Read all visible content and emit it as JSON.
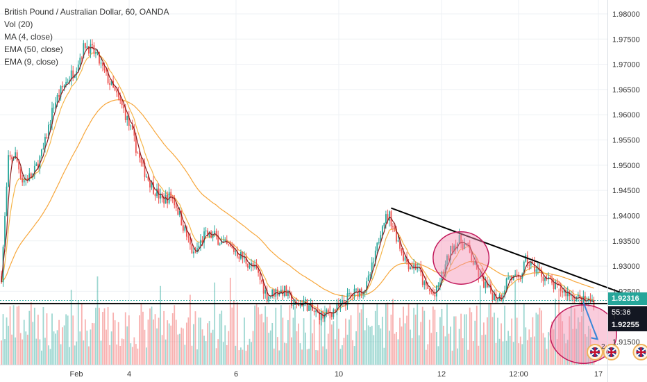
{
  "header": {
    "title": "British Pound / Australian Dollar, 60, OANDA",
    "indicators": [
      "Vol (20)",
      "MA (4, close)",
      "EMA (50, close)",
      "EMA (9, close)"
    ]
  },
  "price_labels": {
    "last": "1.92316",
    "countdown": "55:36",
    "level": "1.92255",
    "partial": "1"
  },
  "event_badge": "2",
  "colors": {
    "up": "#26a69a",
    "down": "#ef5350",
    "ma4": "#8a1c1c",
    "ema50": "#f7a63a",
    "ema9": "#f5b548",
    "trendline": "#000000",
    "ellipse_fill": "#f48fb1",
    "ellipse_stroke": "#c2185b",
    "arrow": "#3a87d8",
    "last_price_bg": "#26a69a",
    "level_bg": "#131722",
    "countdown_bg": "#131722"
  },
  "chart_data": {
    "type": "candlestick",
    "title": "British Pound / Australian Dollar, 60, OANDA",
    "x_ticks": [
      "Feb",
      "4",
      "6",
      "10",
      "12",
      "12:00",
      "17"
    ],
    "y_ticks": [
      1.98,
      1.975,
      1.97,
      1.965,
      1.96,
      1.955,
      1.95,
      1.945,
      1.94,
      1.935,
      1.93,
      1.925,
      1.915
    ],
    "ylim": [
      1.9105,
      1.9825
    ],
    "grid": true,
    "price_path": [
      [
        0,
        1.928
      ],
      [
        4,
        1.951
      ],
      [
        8,
        1.952
      ],
      [
        12,
        1.947
      ],
      [
        18,
        1.948
      ],
      [
        24,
        1.953
      ],
      [
        30,
        1.962
      ],
      [
        36,
        1.966
      ],
      [
        42,
        1.969
      ],
      [
        48,
        1.974
      ],
      [
        54,
        1.972
      ],
      [
        58,
        1.969
      ],
      [
        64,
        1.965
      ],
      [
        70,
        1.961
      ],
      [
        75,
        1.956
      ],
      [
        80,
        1.95
      ],
      [
        86,
        1.946
      ],
      [
        92,
        1.943
      ],
      [
        97,
        1.944
      ],
      [
        100,
        1.942
      ],
      [
        106,
        1.936
      ],
      [
        110,
        1.932
      ],
      [
        116,
        1.936
      ],
      [
        122,
        1.936
      ],
      [
        128,
        1.934
      ],
      [
        134,
        1.933
      ],
      [
        140,
        1.931
      ],
      [
        146,
        1.929
      ],
      [
        152,
        1.924
      ],
      [
        157,
        1.925
      ],
      [
        162,
        1.925
      ],
      [
        168,
        1.922
      ],
      [
        173,
        1.923
      ],
      [
        178,
        1.921
      ],
      [
        184,
        1.92
      ],
      [
        189,
        1.921
      ],
      [
        194,
        1.922
      ],
      [
        199,
        1.924
      ],
      [
        204,
        1.925
      ],
      [
        209,
        1.926
      ],
      [
        214,
        1.932
      ],
      [
        218,
        1.939
      ],
      [
        222,
        1.94
      ],
      [
        226,
        1.936
      ],
      [
        230,
        1.932
      ],
      [
        234,
        1.93
      ],
      [
        238,
        1.93
      ],
      [
        242,
        1.926
      ],
      [
        248,
        1.924
      ],
      [
        253,
        1.929
      ],
      [
        258,
        1.934
      ],
      [
        262,
        1.935
      ],
      [
        266,
        1.934
      ],
      [
        272,
        1.929
      ],
      [
        277,
        1.926
      ],
      [
        282,
        1.924
      ],
      [
        286,
        1.924
      ],
      [
        290,
        1.928
      ],
      [
        296,
        1.927
      ],
      [
        300,
        1.931
      ],
      [
        304,
        1.93
      ],
      [
        310,
        1.928
      ],
      [
        316,
        1.926
      ],
      [
        322,
        1.925
      ],
      [
        328,
        1.924
      ],
      [
        332,
        1.923
      ]
    ],
    "annotations": {
      "trendline_from": [
        223,
        1.9415
      ],
      "trendline_to": [
        372,
        1.9225
      ],
      "support_level": 1.92255,
      "ellipse_top": {
        "center": [
          263,
          1.9316
        ],
        "spread": [
          16,
          0.0052
        ]
      },
      "ellipse_bottom": {
        "center": [
          333,
          1.9165
        ],
        "spread": [
          19,
          0.0058
        ]
      },
      "arrow_from": [
        333,
        1.9228
      ],
      "arrow_to": [
        341,
        1.9155
      ]
    },
    "event_dates": [
      349,
      366,
      388,
      422
    ]
  }
}
